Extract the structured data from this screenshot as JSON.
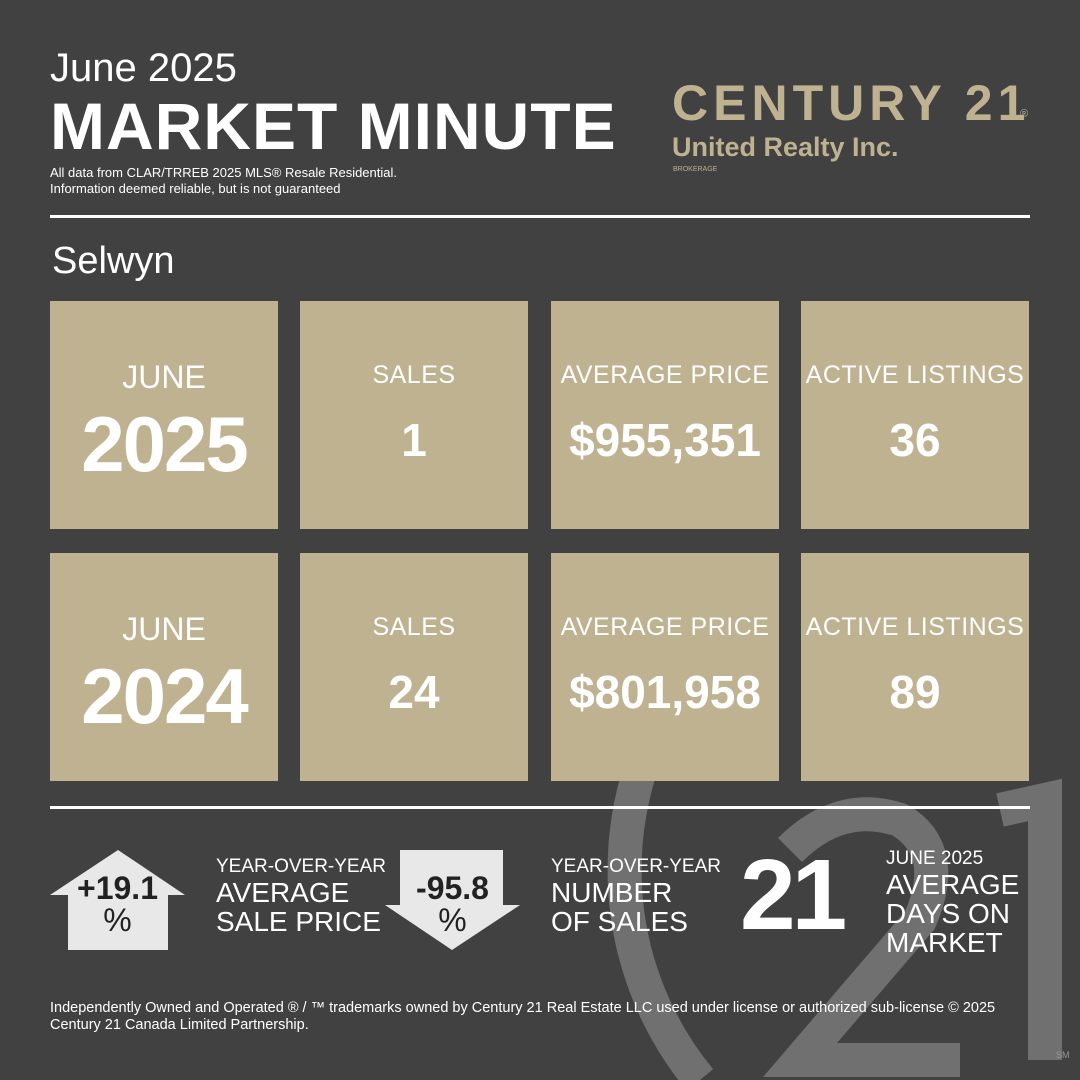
{
  "header": {
    "month": "June 2025",
    "title": "MARKET MINUTE",
    "source": [
      "All data from CLAR/TRREB 2025 MLS® Resale  Residential.",
      "Information deemed reliable, but is not guaranteed"
    ]
  },
  "logo": {
    "brand": "CENTURY 21",
    "registered": "®",
    "office": "United Realty Inc.",
    "brokerage": "BROKERAGE"
  },
  "area": "Selwyn",
  "rows": [
    {
      "month": "JUNE",
      "year": "2025",
      "tiles": [
        {
          "label": "SALES",
          "value": "1"
        },
        {
          "label": "AVERAGE PRICE",
          "value": "$955,351"
        },
        {
          "label": "ACTIVE LISTINGS",
          "value": "36"
        }
      ]
    },
    {
      "month": "JUNE",
      "year": "2024",
      "tiles": [
        {
          "label": "SALES",
          "value": "24"
        },
        {
          "label": "AVERAGE PRICE",
          "value": "$801,958"
        },
        {
          "label": "ACTIVE LISTINGS",
          "value": "89"
        }
      ]
    }
  ],
  "summary": {
    "price_change": {
      "value": "+19.1",
      "unit": "%",
      "label": [
        "YEAR-OVER-YEAR",
        "AVERAGE",
        "SALE PRICE"
      ]
    },
    "sales_change": {
      "value": "-95.8",
      "unit": "%",
      "label": [
        "YEAR-OVER-YEAR",
        "NUMBER",
        "OF SALES"
      ]
    },
    "days_on_market": {
      "value": "21",
      "label": [
        "JUNE 2025",
        "AVERAGE",
        "DAYS ON",
        "MARKET"
      ]
    }
  },
  "footer": "Independently Owned and Operated ® / ™ trademarks owned by Century 21 Real Estate LLC used under license or authorized sub-license © 2025 Century 21 Canada Limited Partnership.",
  "service_mark": "SM"
}
